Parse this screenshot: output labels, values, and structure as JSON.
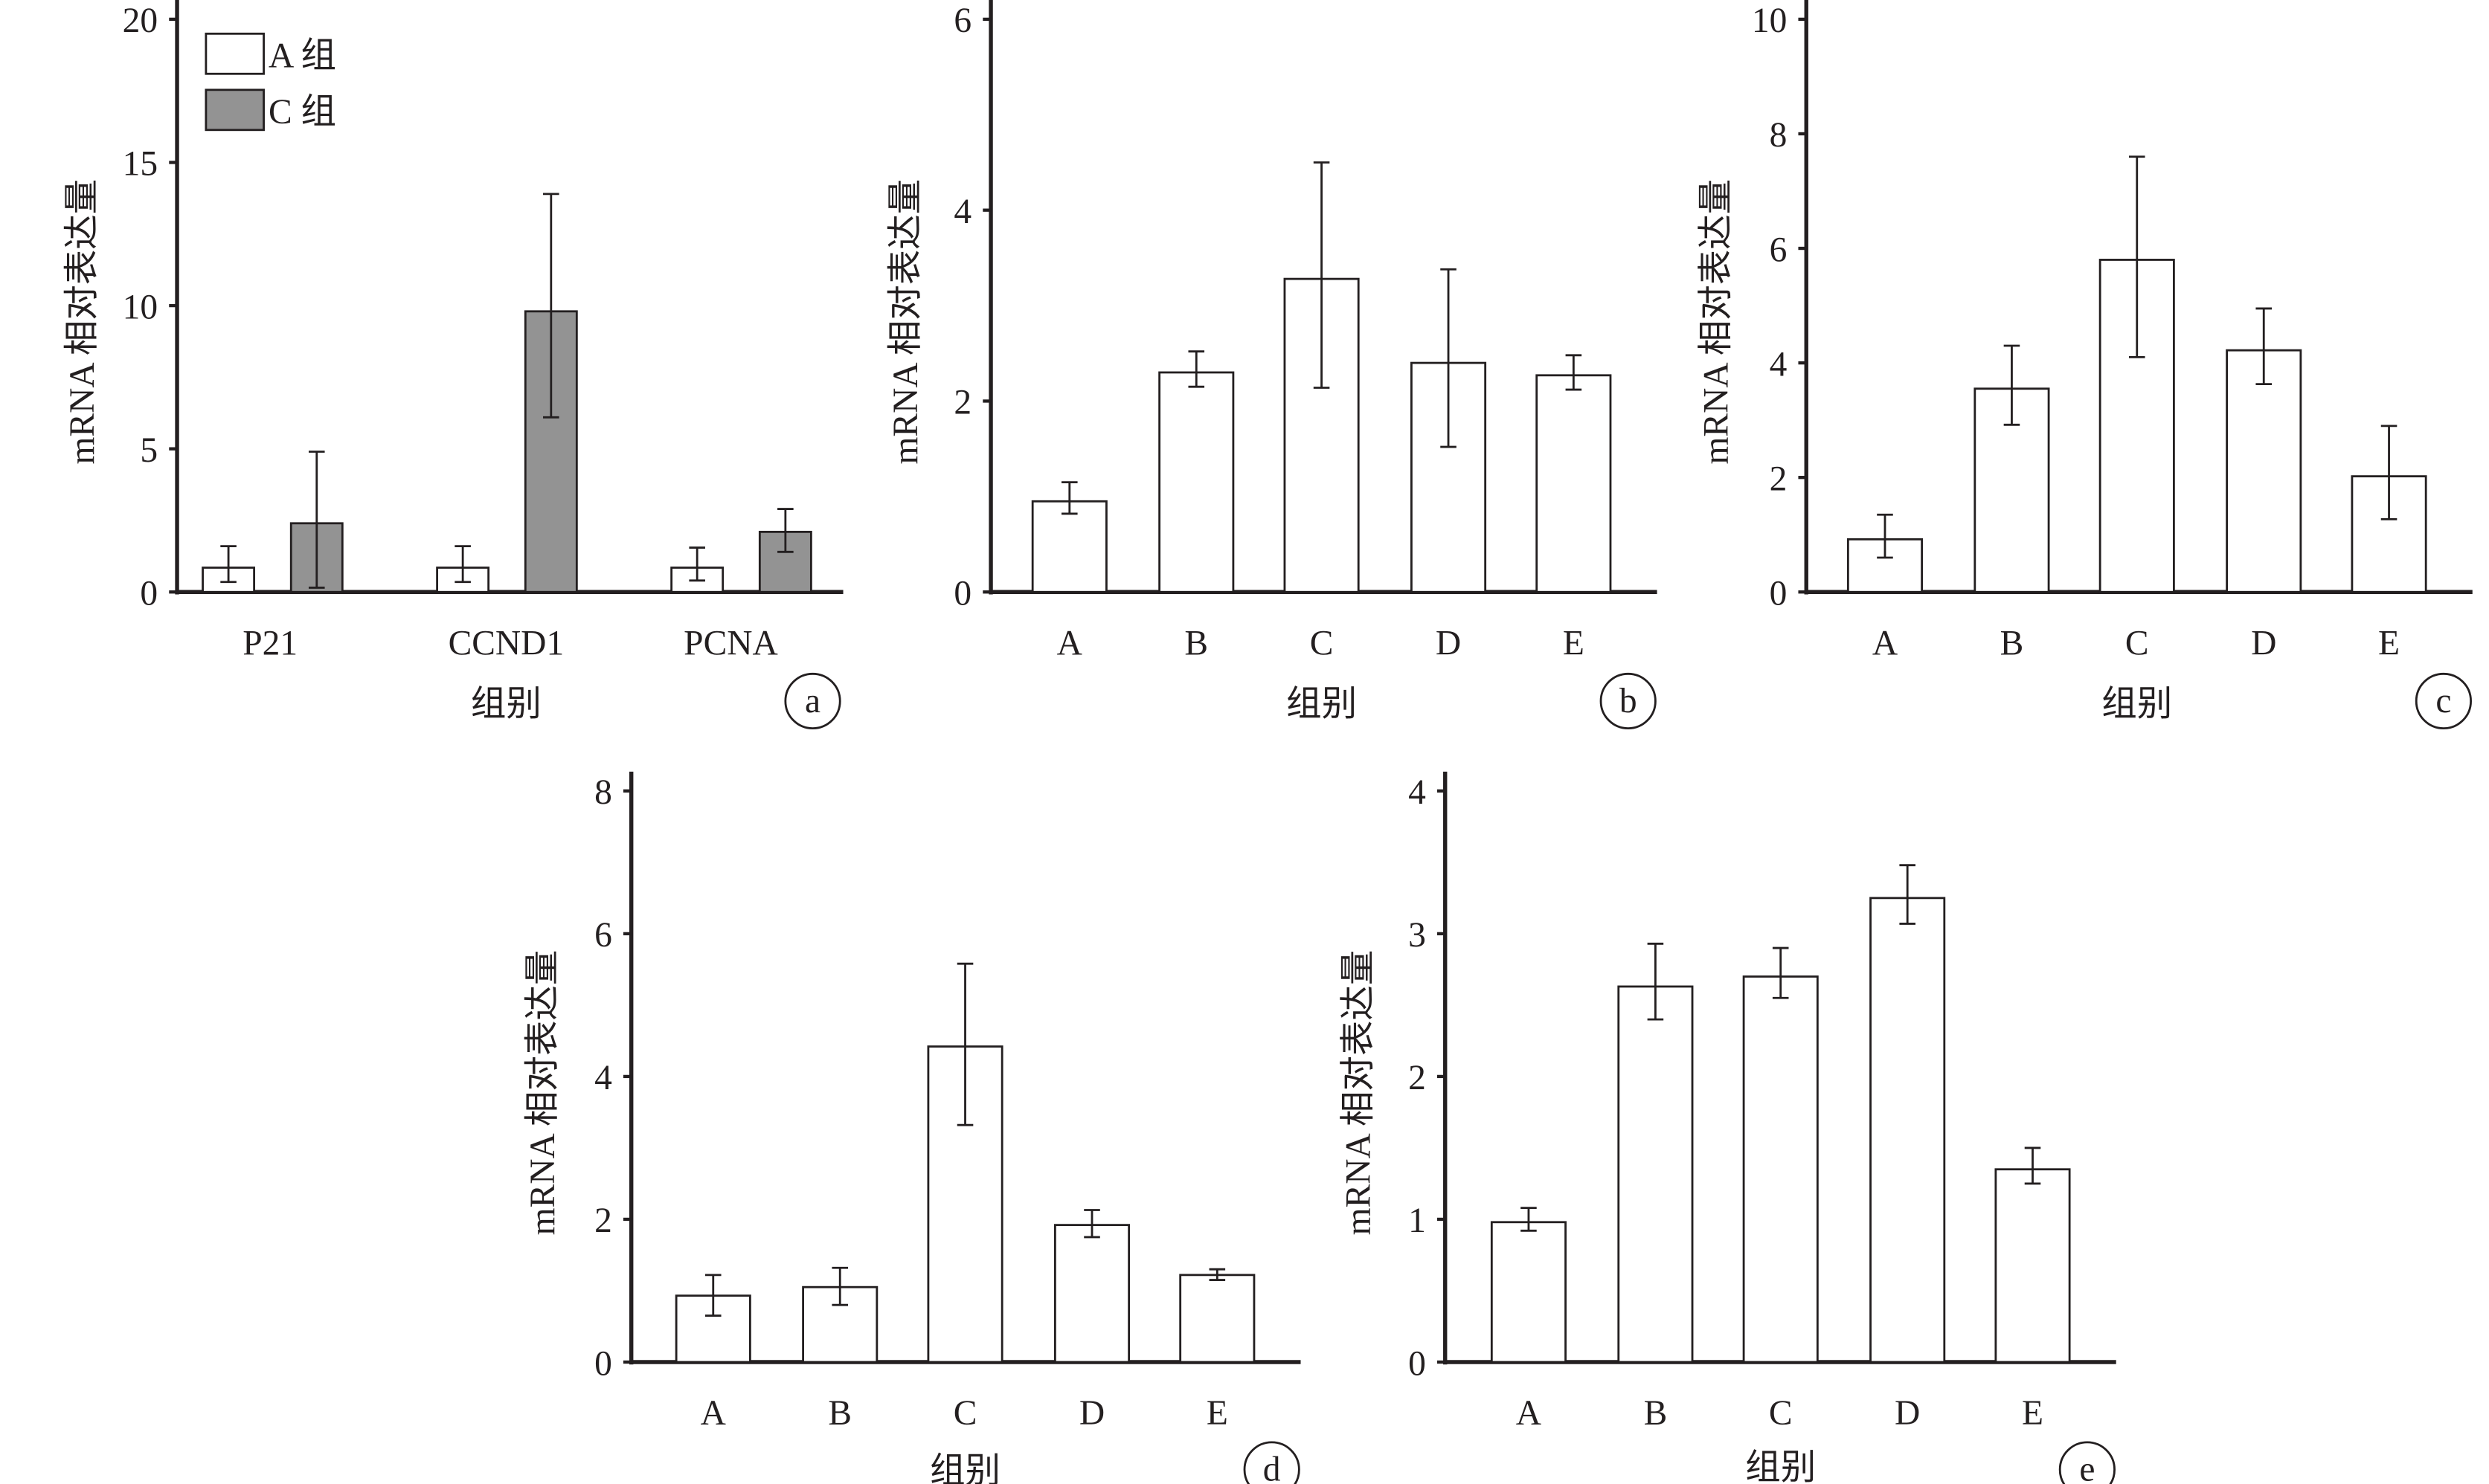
{
  "chart_data": [
    {
      "panel": "a",
      "type": "bar",
      "ylabel": "mRNA 相对表达量",
      "xlabel": "组别",
      "ylim": [
        0,
        20
      ],
      "yticks": [
        0,
        5,
        10,
        15,
        20
      ],
      "categories": [
        "P21",
        "CCND1",
        "PCNA"
      ],
      "legend_position": "top-left",
      "series": [
        {
          "name": "A 组",
          "color": "#ffffff",
          "values": [
            0.85,
            0.85,
            0.85
          ],
          "err_low": [
            0.35,
            0.35,
            0.4
          ],
          "err_high": [
            1.6,
            1.6,
            1.55
          ]
        },
        {
          "name": "C 组",
          "color": "#939393",
          "values": [
            2.4,
            9.8,
            2.1
          ],
          "err_low": [
            0.15,
            6.1,
            1.4
          ],
          "err_high": [
            4.9,
            13.9,
            2.9
          ]
        }
      ]
    },
    {
      "panel": "b",
      "type": "bar",
      "ylabel": "mRNA 相对表达量",
      "xlabel": "组别",
      "ylim": [
        0,
        6
      ],
      "yticks": [
        0,
        2,
        4,
        6
      ],
      "categories": [
        "A",
        "B",
        "C",
        "D",
        "E"
      ],
      "series": [
        {
          "name": "",
          "color": "#ffffff",
          "values": [
            0.95,
            2.3,
            3.28,
            2.4,
            2.27
          ],
          "err_low": [
            0.82,
            2.15,
            2.14,
            1.52,
            2.12
          ],
          "err_high": [
            1.15,
            2.52,
            4.5,
            3.38,
            2.48
          ]
        }
      ]
    },
    {
      "panel": "c",
      "type": "bar",
      "ylabel": "mRNA 相对表达量",
      "xlabel": "组别",
      "ylim": [
        0,
        10
      ],
      "yticks": [
        0,
        2,
        4,
        6,
        8,
        10
      ],
      "categories": [
        "A",
        "B",
        "C",
        "D",
        "E"
      ],
      "series": [
        {
          "name": "",
          "color": "#ffffff",
          "values": [
            0.92,
            3.55,
            5.8,
            4.22,
            2.02
          ],
          "err_low": [
            0.6,
            2.92,
            4.1,
            3.63,
            1.27
          ],
          "err_high": [
            1.35,
            4.3,
            7.6,
            4.95,
            2.9
          ]
        }
      ]
    },
    {
      "panel": "d",
      "type": "bar",
      "ylabel": "mRNA 相对表达量",
      "xlabel": "组别",
      "ylim": [
        0,
        8
      ],
      "yticks": [
        0,
        2,
        4,
        6,
        8
      ],
      "categories": [
        "A",
        "B",
        "C",
        "D",
        "E"
      ],
      "series": [
        {
          "name": "",
          "color": "#ffffff",
          "values": [
            0.93,
            1.05,
            4.42,
            1.92,
            1.22
          ],
          "err_low": [
            0.65,
            0.8,
            3.32,
            1.75,
            1.15
          ],
          "err_high": [
            1.22,
            1.32,
            5.58,
            2.13,
            1.3
          ]
        }
      ]
    },
    {
      "panel": "e",
      "type": "bar",
      "ylabel": "mRNA 相对表达量",
      "xlabel": "组别",
      "ylim": [
        0,
        4
      ],
      "yticks": [
        0,
        1,
        2,
        3,
        4
      ],
      "categories": [
        "A",
        "B",
        "C",
        "D",
        "E"
      ],
      "series": [
        {
          "name": "",
          "color": "#ffffff",
          "values": [
            0.98,
            2.63,
            2.7,
            3.25,
            1.35
          ],
          "err_low": [
            0.92,
            2.4,
            2.55,
            3.07,
            1.25
          ],
          "err_high": [
            1.08,
            2.93,
            2.9,
            3.48,
            1.5
          ]
        }
      ]
    }
  ]
}
